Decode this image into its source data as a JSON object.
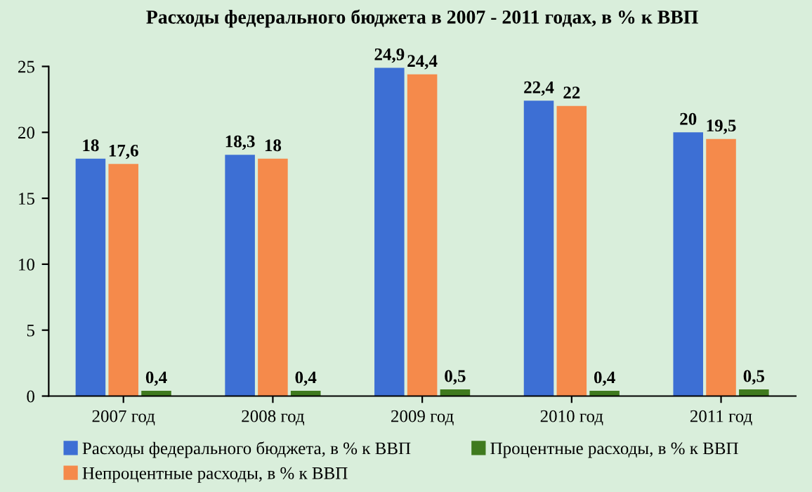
{
  "chart_data": {
    "type": "bar",
    "title": "Расходы федерального бюджета в 2007 - 2011 годах, в % к ВВП",
    "categories": [
      "2007 год",
      "2008 год",
      "2009 год",
      "2010 год",
      "2011 год"
    ],
    "series": [
      {
        "name": "Расходы федерального бюджета, в % к ВВП",
        "color": "#3d6fd4",
        "values": [
          18,
          18.3,
          24.9,
          22.4,
          20
        ],
        "value_labels": [
          "18",
          "18,3",
          "24,9",
          "22,4",
          "20"
        ]
      },
      {
        "name": "Непроцентные расходы, в % к ВВП",
        "color": "#f58a4b",
        "values": [
          17.6,
          18,
          24.4,
          22,
          19.5
        ],
        "value_labels": [
          "17,6",
          "18",
          "24,4",
          "22",
          "19,5"
        ]
      },
      {
        "name": "Процентные расходы, в % к ВВП",
        "color": "#3f7a1e",
        "values": [
          0.4,
          0.4,
          0.5,
          0.4,
          0.5
        ],
        "value_labels": [
          "0,4",
          "0,4",
          "0,5",
          "0,4",
          "0,5"
        ]
      }
    ],
    "ylim": [
      0,
      25
    ],
    "yticks": [
      0,
      5,
      10,
      15,
      20,
      25
    ],
    "grid": false,
    "legend": "bottom"
  }
}
